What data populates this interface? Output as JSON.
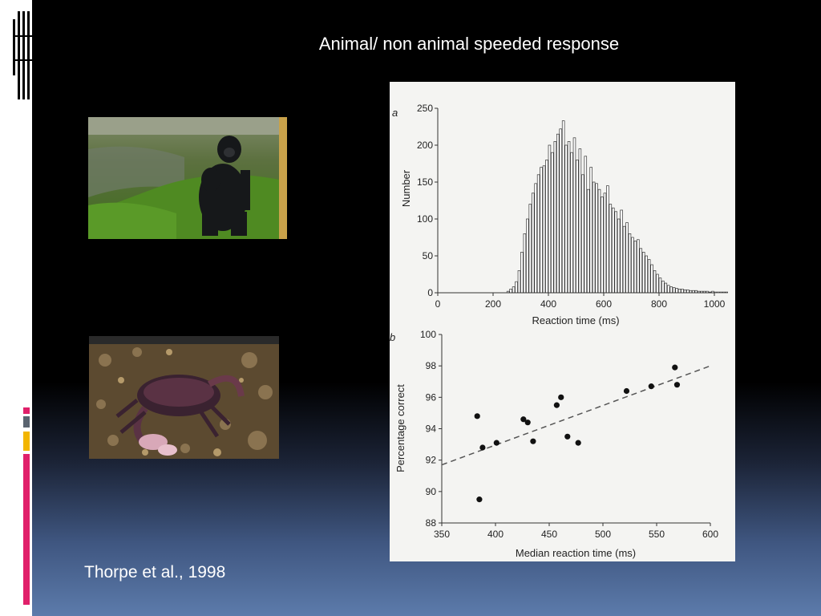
{
  "slide": {
    "title": "Animal/ non animal speeded response",
    "citation": "Thorpe et al., 1998"
  },
  "images": {
    "top": "gorilla-photo",
    "bottom": "crab-photo"
  },
  "colors": {
    "background_top": "#000000",
    "background_bottom": "#5c7bab",
    "accent_pink": "#e0206a",
    "accent_gray": "#5a6470",
    "accent_yellow": "#f2b500",
    "figure_background": "#f4f4f2"
  },
  "chart_data": [
    {
      "type": "bar",
      "panel_label": "a",
      "xlabel": "Reaction time (ms)",
      "ylabel": "Number",
      "xlim": [
        0,
        1000
      ],
      "ylim": [
        0,
        250
      ],
      "xticks": [
        "0",
        "200",
        "400",
        "600",
        "800",
        "1000"
      ],
      "yticks": [
        "0",
        "50",
        "100",
        "150",
        "200",
        "250"
      ],
      "bin_width_ms": 10,
      "bin_start_ms": 250,
      "values": [
        2,
        5,
        8,
        15,
        30,
        55,
        80,
        100,
        120,
        135,
        148,
        160,
        170,
        172,
        180,
        200,
        190,
        205,
        215,
        222,
        233,
        200,
        205,
        190,
        210,
        180,
        195,
        160,
        185,
        140,
        170,
        150,
        148,
        140,
        130,
        135,
        145,
        120,
        115,
        110,
        100,
        112,
        90,
        95,
        80,
        75,
        70,
        72,
        60,
        55,
        50,
        45,
        38,
        30,
        25,
        20,
        16,
        13,
        10,
        8,
        7,
        6,
        5,
        5,
        4,
        4,
        3,
        3,
        3,
        2,
        2,
        2,
        2,
        1,
        2,
        1,
        1,
        1,
        1,
        1
      ]
    },
    {
      "type": "scatter",
      "panel_label": "b",
      "xlabel": "Median reaction time (ms)",
      "ylabel": "Percentage correct",
      "xlim": [
        350,
        600
      ],
      "ylim": [
        88,
        100
      ],
      "xticks": [
        "350",
        "400",
        "450",
        "500",
        "550",
        "600"
      ],
      "yticks": [
        "88",
        "90",
        "92",
        "94",
        "96",
        "98",
        "100"
      ],
      "points": [
        {
          "x": 383,
          "y": 94.8
        },
        {
          "x": 385,
          "y": 89.5
        },
        {
          "x": 388,
          "y": 92.8
        },
        {
          "x": 401,
          "y": 93.1
        },
        {
          "x": 426,
          "y": 94.6
        },
        {
          "x": 430,
          "y": 94.4
        },
        {
          "x": 435,
          "y": 93.2
        },
        {
          "x": 457,
          "y": 95.5
        },
        {
          "x": 461,
          "y": 96.0
        },
        {
          "x": 467,
          "y": 93.5
        },
        {
          "x": 477,
          "y": 93.1
        },
        {
          "x": 522,
          "y": 96.4
        },
        {
          "x": 545,
          "y": 96.7
        },
        {
          "x": 567,
          "y": 97.9
        },
        {
          "x": 569,
          "y": 96.8
        }
      ],
      "trend_line": {
        "x": [
          350,
          600
        ],
        "y": [
          91.7,
          98.0
        ],
        "style": "dashed"
      }
    }
  ]
}
